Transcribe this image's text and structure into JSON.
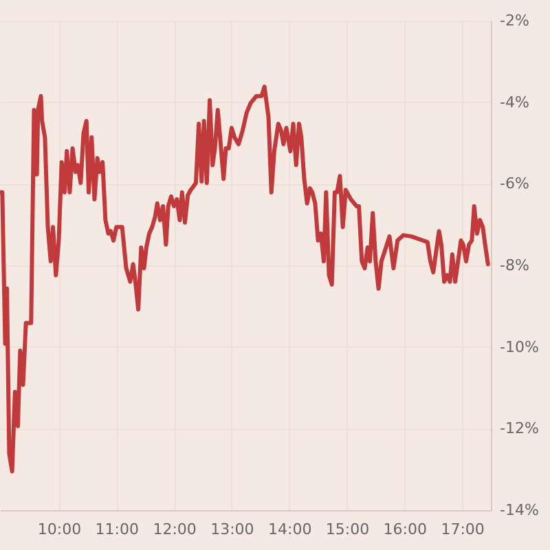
{
  "chart_data": {
    "type": "line",
    "color": "#c0393b",
    "grid": true,
    "x": [
      8.98,
      9.02,
      9.07,
      9.1,
      9.14,
      9.19,
      9.24,
      9.29,
      9.33,
      9.38,
      9.43,
      9.48,
      9.52,
      9.57,
      9.62,
      9.64,
      9.69,
      9.71,
      9.76,
      9.81,
      9.86,
      9.9,
      9.95,
      10.0,
      10.05,
      10.1,
      10.14,
      10.19,
      10.24,
      10.29,
      10.33,
      10.38,
      10.43,
      10.48,
      10.52,
      10.57,
      10.62,
      10.67,
      10.71,
      10.76,
      10.81,
      10.86,
      10.9,
      10.95,
      11.0,
      11.05,
      11.1,
      11.17,
      11.24,
      11.29,
      11.33,
      11.38,
      11.43,
      11.48,
      11.52,
      11.57,
      11.62,
      11.67,
      11.71,
      11.76,
      11.81,
      11.86,
      11.9,
      11.95,
      12.0,
      12.05,
      12.1,
      12.14,
      12.19,
      12.24,
      12.29,
      12.33,
      12.38,
      12.43,
      12.48,
      12.52,
      12.57,
      12.62,
      12.67,
      12.71,
      12.76,
      12.81,
      12.86,
      12.9,
      12.95,
      13.0,
      13.05,
      13.12,
      13.19,
      13.26,
      13.33,
      13.43,
      13.52,
      13.57,
      13.64,
      13.69,
      13.74,
      13.81,
      13.86,
      13.9,
      13.95,
      14.02,
      14.07,
      14.12,
      14.17,
      14.21,
      14.26,
      14.31,
      14.36,
      14.4,
      14.45,
      14.5,
      14.55,
      14.6,
      14.64,
      14.69,
      14.74,
      14.79,
      14.83,
      14.88,
      14.93,
      14.98,
      15.07,
      15.17,
      15.21,
      15.26,
      15.31,
      15.36,
      15.4,
      15.45,
      15.5,
      15.55,
      15.6,
      15.64,
      15.74,
      15.81,
      15.88,
      15.98,
      16.12,
      16.26,
      16.4,
      16.45,
      16.5,
      16.55,
      16.6,
      16.64,
      16.69,
      16.74,
      16.79,
      16.83,
      16.88,
      16.93,
      16.98,
      17.02,
      17.07,
      17.12,
      17.17,
      17.21,
      17.26,
      17.31,
      17.36,
      17.4,
      17.45
    ],
    "values": [
      -6.21,
      -6.21,
      -9.92,
      -8.57,
      -12.62,
      -13.05,
      -11.1,
      -11.94,
      -10.09,
      -10.93,
      -9.41,
      -9.41,
      -9.41,
      -4.19,
      -5.77,
      -4.19,
      -3.85,
      -4.46,
      -4.86,
      -7.06,
      -7.9,
      -7.06,
      -8.24,
      -7.39,
      -5.47,
      -6.21,
      -5.2,
      -6.21,
      -5.13,
      -5.71,
      -5.54,
      -5.98,
      -4.76,
      -4.46,
      -6.21,
      -4.86,
      -6.38,
      -5.37,
      -5.71,
      -5.47,
      -6.89,
      -7.22,
      -7.16,
      -7.39,
      -7.06,
      -7.06,
      -7.06,
      -8.07,
      -8.4,
      -7.97,
      -8.4,
      -9.08,
      -7.56,
      -8.07,
      -7.56,
      -7.22,
      -7.06,
      -6.82,
      -6.48,
      -6.89,
      -6.55,
      -7.49,
      -6.55,
      -6.31,
      -6.55,
      -6.38,
      -6.89,
      -6.21,
      -6.95,
      -6.28,
      -6.15,
      -6.08,
      -5.98,
      -4.53,
      -5.94,
      -4.46,
      -5.98,
      -3.95,
      -5.54,
      -5.13,
      -4.19,
      -5.03,
      -5.88,
      -5.13,
      -5.13,
      -4.63,
      -4.86,
      -5.03,
      -4.7,
      -4.26,
      -4.02,
      -3.85,
      -3.85,
      -3.62,
      -4.36,
      -6.21,
      -5.2,
      -4.53,
      -4.7,
      -5.03,
      -4.63,
      -5.2,
      -4.53,
      -5.54,
      -4.53,
      -4.86,
      -5.88,
      -6.48,
      -6.11,
      -6.21,
      -6.48,
      -7.39,
      -7.22,
      -7.9,
      -6.21,
      -8.24,
      -8.47,
      -6.21,
      -6.21,
      -5.81,
      -7.06,
      -6.15,
      -6.38,
      -6.55,
      -6.55,
      -7.9,
      -8.07,
      -7.56,
      -7.9,
      -6.72,
      -7.9,
      -8.57,
      -7.9,
      -7.73,
      -7.29,
      -8.07,
      -7.39,
      -7.26,
      -7.29,
      -7.36,
      -7.43,
      -7.9,
      -8.17,
      -7.66,
      -7.16,
      -7.49,
      -8.4,
      -8.24,
      -8.4,
      -7.73,
      -8.4,
      -7.9,
      -7.39,
      -7.49,
      -7.9,
      -7.49,
      -7.39,
      -6.55,
      -7.22,
      -6.89,
      -7.06,
      -7.49,
      -7.97
    ],
    "xlim": [
      8.98,
      17.5
    ],
    "xticks": [
      {
        "value": 10,
        "label": "10:00"
      },
      {
        "value": 11,
        "label": "11:00"
      },
      {
        "value": 12,
        "label": "12:00"
      },
      {
        "value": 13,
        "label": "13:00"
      },
      {
        "value": 14,
        "label": "14:00"
      },
      {
        "value": 15,
        "label": "15:00"
      },
      {
        "value": 16,
        "label": "16:00"
      },
      {
        "value": 17,
        "label": "17:00"
      }
    ],
    "ylim": [
      -14,
      -2
    ],
    "yticks": [
      {
        "value": -14,
        "label": "-14%"
      },
      {
        "value": -12,
        "label": "-12%"
      },
      {
        "value": -10,
        "label": "-10%"
      },
      {
        "value": -8,
        "label": "-8%"
      },
      {
        "value": -6,
        "label": "-6%"
      },
      {
        "value": -4,
        "label": "-4%"
      },
      {
        "value": -2,
        "label": "-2%"
      }
    ]
  }
}
